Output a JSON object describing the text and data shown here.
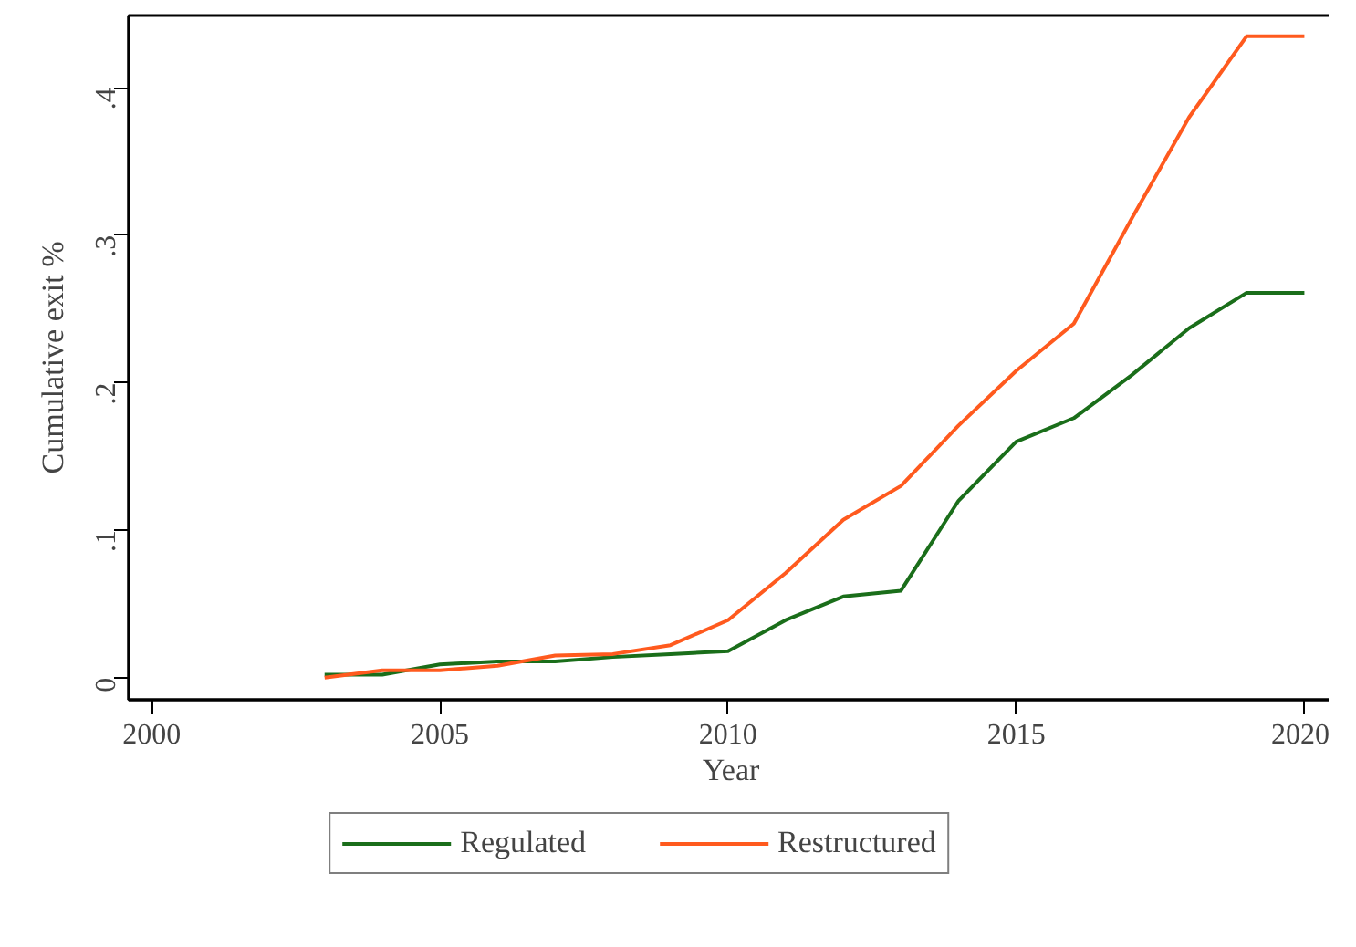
{
  "chart_data": {
    "type": "line",
    "xlabel": "Year",
    "ylabel": "Cumulative exit %",
    "x": [
      2003,
      2004,
      2005,
      2006,
      2007,
      2008,
      2009,
      2010,
      2011,
      2012,
      2013,
      2014,
      2015,
      2016,
      2017,
      2018,
      2019,
      2020
    ],
    "series": [
      {
        "name": "Regulated",
        "color": "#1a6e1a",
        "values": [
          0.002,
          0.002,
          0.009,
          0.011,
          0.011,
          0.014,
          0.016,
          0.018,
          0.039,
          0.055,
          0.059,
          0.12,
          0.16,
          0.176,
          0.205,
          0.237,
          0.261,
          0.261
        ]
      },
      {
        "name": "Restructured",
        "color": "#ff5a1e",
        "values": [
          0.0,
          0.005,
          0.005,
          0.008,
          0.015,
          0.016,
          0.022,
          0.039,
          0.071,
          0.107,
          0.13,
          0.171,
          0.208,
          0.24,
          0.311,
          0.38,
          0.435,
          0.435
        ]
      }
    ],
    "xlim": [
      1999.6,
      2020.5
    ],
    "ylim": [
      -0.015,
      0.449
    ],
    "xticks": [
      2000,
      2005,
      2010,
      2015,
      2020
    ],
    "yticks": [
      0,
      {
        "value": 0.1,
        "label": ".1"
      },
      {
        "value": 0.2,
        "label": ".2"
      },
      {
        "value": 0.3,
        "label": ".3"
      },
      {
        "value": 0.4,
        "label": ".4"
      }
    ],
    "grid": false,
    "legend": "bottom",
    "line_style": "solid",
    "marker": "none"
  }
}
